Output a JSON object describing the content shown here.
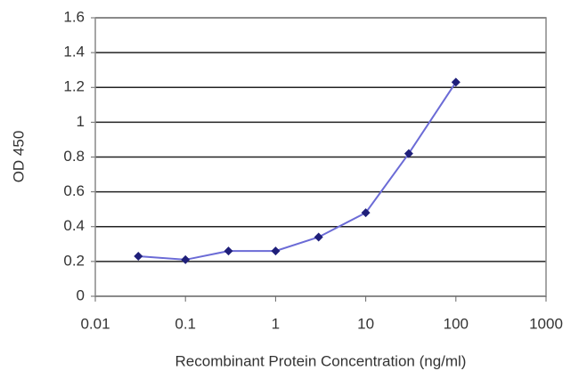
{
  "chart_data": {
    "type": "line",
    "xlabel": "Recombinant Protein Concentration (ng/ml)",
    "ylabel": "OD 450",
    "x": [
      0.03,
      0.1,
      0.3,
      1,
      3,
      10,
      30,
      100
    ],
    "series": [
      {
        "color": "#1f1f7a",
        "line_color": "#6b6bd6",
        "values": [
          0.23,
          0.21,
          0.26,
          0.26,
          0.34,
          0.48,
          0.82,
          1.23
        ]
      }
    ],
    "xscale": "log",
    "xlim": [
      0.01,
      1000
    ],
    "xticks": [
      0.01,
      0.1,
      1,
      10,
      100,
      1000
    ],
    "ylim": [
      0,
      1.6
    ],
    "yticks": [
      0,
      0.2,
      0.4,
      0.6,
      0.8,
      1,
      1.2,
      1.4,
      1.6
    ],
    "grid": true
  }
}
